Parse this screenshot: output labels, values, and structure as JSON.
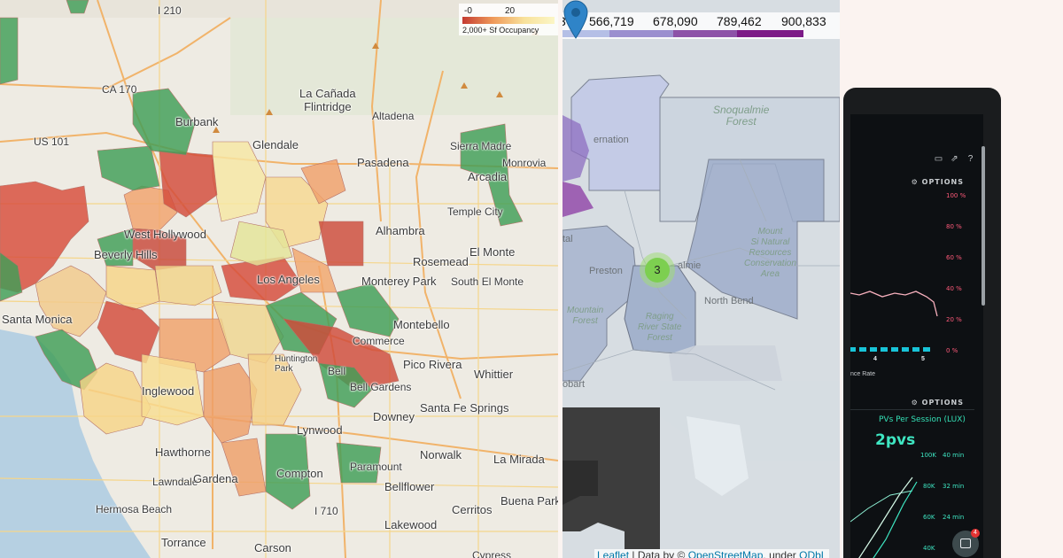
{
  "la_map": {
    "legend": {
      "min": "-0",
      "max": "20",
      "title": "2,000+ Sf Occupancy"
    },
    "labels": {
      "i210": "I 210",
      "ca170": "CA 170",
      "us101": "US 101",
      "la_canada": "La Cañada\nFlintridge",
      "altadena": "Altadena",
      "burbank": "Burbank",
      "sierra_madre": "Sierra Madre",
      "glendale": "Glendale",
      "pasadena": "Pasadena",
      "monrovia": "Monrovia",
      "arcadia": "Arcadia",
      "temple_city": "Temple City",
      "west_hollywood": "West Hollywood",
      "alhambra": "Alhambra",
      "beverly_hills": "Beverly Hills",
      "rosemead": "Rosemead",
      "el_monte": "El Monte",
      "south_el_monte": "South El Monte",
      "monterey_park": "Monterey Park",
      "los_angeles": "Los Angeles",
      "santa_monica": "Santa Monica",
      "montebello": "Montebello",
      "commerce": "Commerce",
      "pico_rivera": "Pico Rivera",
      "whittier": "Whittier",
      "huntington_park": "Huntington\nPark",
      "bell": "Bell",
      "bell_gardens": "Bell Gardens",
      "inglewood": "Inglewood",
      "downey": "Downey",
      "santa_fe_springs": "Santa Fe Springs",
      "lynwood": "Lynwood",
      "hawthorne": "Hawthorne",
      "norwalk": "Norwalk",
      "compton": "Compton",
      "la_mirada": "La Mirada",
      "lawndale": "Lawndale",
      "gardena": "Gardena",
      "paramount": "Paramount",
      "bellflower": "Bellflower",
      "buena_park": "Buena Park",
      "hermosa_beach": "Hermosa Beach",
      "i710": "I 710",
      "cerritos": "Cerritos",
      "torrance": "Torrance",
      "lakewood": "Lakewood",
      "carson": "Carson",
      "cypress": "Cypress"
    }
  },
  "snoqualmie_map": {
    "scale_ticks": [
      "3",
      "566,719",
      "678,090",
      "789,462",
      "900,833"
    ],
    "scale_colors": [
      "#b5bfe6",
      "#9b8fcf",
      "#8d52a8",
      "#7c1a87"
    ],
    "labels": {
      "snoqualmie_forest": "Snoqualmie\nForest",
      "fernation": "ernation",
      "preston": "Preston",
      "almie": "almie",
      "north_bend": "North Bend",
      "mount_si": "Mount\nSi Natural\nResources\nConservation\nArea",
      "raging_river": "Raging\nRiver State\nForest",
      "mountain_forest": "Mountain\nForest",
      "tal": "tal",
      "hobart": "obart"
    },
    "cluster_count": "3",
    "attribution": {
      "leaflet": "Leaflet",
      "sep": " | Data by © ",
      "osm": "OpenStreetMap",
      "under": ", under ",
      "odbl": "ODbL"
    }
  },
  "dashboard": {
    "options_1": "OPTIONS",
    "options_2": "OPTIONS",
    "pct_axis": [
      "100 %",
      "80 %",
      "60 %",
      "40 %",
      "20 %",
      "0 %"
    ],
    "x_ticks": [
      "4",
      "5"
    ],
    "rate_label": "nce Rate",
    "lux_title": "PVs Per Session (LUX)",
    "lux_value": "2pvs",
    "left_axis": [
      "100K",
      "80K",
      "60K",
      "40K"
    ],
    "right_axis": [
      "40 min",
      "32 min",
      "24 min"
    ],
    "notification_count": "4"
  }
}
